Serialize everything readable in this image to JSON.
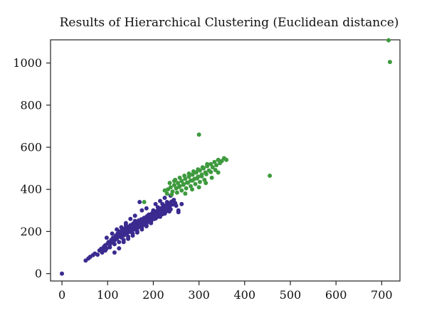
{
  "chart_data": {
    "type": "scatter",
    "title": "Results of Hierarchical Clustering (Euclidean distance)",
    "xlabel": "",
    "ylabel": "",
    "xlim": [
      -25,
      740
    ],
    "ylim": [
      -35,
      1110
    ],
    "x_ticks": [
      0,
      100,
      200,
      300,
      400,
      500,
      600,
      700
    ],
    "y_ticks": [
      0,
      200,
      400,
      600,
      800,
      1000
    ],
    "grid": false,
    "legend": "none",
    "series": [
      {
        "color": "#3b2a8f",
        "points": [
          [
            0,
            0
          ],
          [
            52,
            62
          ],
          [
            58,
            72
          ],
          [
            62,
            80
          ],
          [
            68,
            88
          ],
          [
            72,
            95
          ],
          [
            78,
            90
          ],
          [
            82,
            110
          ],
          [
            86,
            118
          ],
          [
            90,
            112
          ],
          [
            92,
            128
          ],
          [
            95,
            135
          ],
          [
            98,
            120
          ],
          [
            100,
            142
          ],
          [
            102,
            150
          ],
          [
            105,
            138
          ],
          [
            108,
            160
          ],
          [
            110,
            148
          ],
          [
            112,
            170
          ],
          [
            115,
            158
          ],
          [
            118,
            180
          ],
          [
            120,
            165
          ],
          [
            122,
            190
          ],
          [
            124,
            175
          ],
          [
            126,
            200
          ],
          [
            128,
            185
          ],
          [
            130,
            172
          ],
          [
            132,
            208
          ],
          [
            134,
            195
          ],
          [
            136,
            182
          ],
          [
            138,
            215
          ],
          [
            140,
            200
          ],
          [
            142,
            190
          ],
          [
            144,
            222
          ],
          [
            146,
            210
          ],
          [
            148,
            198
          ],
          [
            150,
            230
          ],
          [
            152,
            215
          ],
          [
            154,
            205
          ],
          [
            156,
            238
          ],
          [
            158,
            222
          ],
          [
            160,
            210
          ],
          [
            162,
            245
          ],
          [
            164,
            230
          ],
          [
            166,
            218
          ],
          [
            168,
            252
          ],
          [
            170,
            238
          ],
          [
            172,
            225
          ],
          [
            174,
            258
          ],
          [
            176,
            245
          ],
          [
            178,
            232
          ],
          [
            180,
            265
          ],
          [
            182,
            250
          ],
          [
            184,
            240
          ],
          [
            186,
            272
          ],
          [
            188,
            258
          ],
          [
            190,
            246
          ],
          [
            192,
            280
          ],
          [
            194,
            265
          ],
          [
            196,
            252
          ],
          [
            198,
            288
          ],
          [
            200,
            272
          ],
          [
            202,
            260
          ],
          [
            204,
            295
          ],
          [
            206,
            280
          ],
          [
            208,
            268
          ],
          [
            210,
            300
          ],
          [
            212,
            288
          ],
          [
            214,
            276
          ],
          [
            216,
            310
          ],
          [
            218,
            295
          ],
          [
            220,
            282
          ],
          [
            222,
            318
          ],
          [
            224,
            302
          ],
          [
            226,
            290
          ],
          [
            228,
            325
          ],
          [
            230,
            310
          ],
          [
            232,
            298
          ],
          [
            234,
            335
          ],
          [
            236,
            320
          ],
          [
            238,
            305
          ],
          [
            240,
            342
          ],
          [
            242,
            328
          ],
          [
            245,
            350
          ],
          [
            248,
            335
          ],
          [
            250,
            322
          ],
          [
            255,
            300
          ],
          [
            262,
            330
          ],
          [
            115,
            100
          ],
          [
            125,
            120
          ],
          [
            135,
            150
          ],
          [
            145,
            165
          ],
          [
            155,
            180
          ],
          [
            165,
            195
          ],
          [
            175,
            210
          ],
          [
            185,
            225
          ],
          [
            195,
            240
          ],
          [
            120,
            210
          ],
          [
            110,
            190
          ],
          [
            98,
            170
          ],
          [
            150,
            260
          ],
          [
            160,
            275
          ],
          [
            140,
            240
          ],
          [
            175,
            300
          ],
          [
            185,
            310
          ],
          [
            205,
            330
          ],
          [
            215,
            345
          ],
          [
            225,
            360
          ],
          [
            238,
            370
          ],
          [
            170,
            340
          ],
          [
            105,
            125
          ],
          [
            115,
            140
          ],
          [
            125,
            150
          ],
          [
            135,
            160
          ],
          [
            145,
            175
          ],
          [
            155,
            190
          ],
          [
            165,
            200
          ],
          [
            175,
            220
          ],
          [
            185,
            230
          ],
          [
            195,
            250
          ],
          [
            205,
            262
          ],
          [
            215,
            270
          ],
          [
            225,
            285
          ],
          [
            235,
            295
          ],
          [
            130,
            220
          ],
          [
            140,
            230
          ],
          [
            160,
            250
          ],
          [
            190,
            280
          ],
          [
            200,
            300
          ],
          [
            210,
            315
          ],
          [
            220,
            330
          ],
          [
            230,
            340
          ],
          [
            88,
            100
          ],
          [
            95,
            110
          ],
          [
            255,
            292
          ]
        ]
      },
      {
        "color": "#3e9a3e",
        "points": [
          [
            180,
            340
          ],
          [
            225,
            395
          ],
          [
            232,
            400
          ],
          [
            238,
            410
          ],
          [
            242,
            390
          ],
          [
            246,
            420
          ],
          [
            250,
            405
          ],
          [
            254,
            430
          ],
          [
            258,
            415
          ],
          [
            262,
            440
          ],
          [
            266,
            425
          ],
          [
            270,
            450
          ],
          [
            274,
            432
          ],
          [
            278,
            460
          ],
          [
            282,
            442
          ],
          [
            286,
            470
          ],
          [
            290,
            450
          ],
          [
            294,
            480
          ],
          [
            298,
            460
          ],
          [
            302,
            490
          ],
          [
            306,
            470
          ],
          [
            310,
            500
          ],
          [
            314,
            480
          ],
          [
            318,
            510
          ],
          [
            322,
            490
          ],
          [
            326,
            520
          ],
          [
            330,
            505
          ],
          [
            334,
            530
          ],
          [
            338,
            515
          ],
          [
            342,
            540
          ],
          [
            346,
            525
          ],
          [
            350,
            535
          ],
          [
            355,
            548
          ],
          [
            360,
            540
          ],
          [
            230,
            380
          ],
          [
            240,
            375
          ],
          [
            252,
            385
          ],
          [
            262,
            395
          ],
          [
            272,
            405
          ],
          [
            282,
            415
          ],
          [
            292,
            425
          ],
          [
            302,
            435
          ],
          [
            312,
            445
          ],
          [
            248,
            445
          ],
          [
            258,
            455
          ],
          [
            268,
            465
          ],
          [
            278,
            475
          ],
          [
            288,
            485
          ],
          [
            298,
            495
          ],
          [
            308,
            505
          ],
          [
            318,
            520
          ],
          [
            270,
            380
          ],
          [
            285,
            400
          ],
          [
            300,
            410
          ],
          [
            315,
            430
          ],
          [
            328,
            455
          ],
          [
            342,
            480
          ],
          [
            300,
            660
          ],
          [
            455,
            465
          ],
          [
            715,
            1108
          ],
          [
            718,
            1005
          ],
          [
            236,
            430
          ],
          [
            246,
            440
          ],
          [
            256,
            412
          ],
          [
            266,
            422
          ],
          [
            276,
            432
          ],
          [
            286,
            442
          ],
          [
            296,
            452
          ],
          [
            306,
            462
          ],
          [
            316,
            472
          ],
          [
            326,
            482
          ],
          [
            336,
            492
          ]
        ]
      }
    ]
  }
}
